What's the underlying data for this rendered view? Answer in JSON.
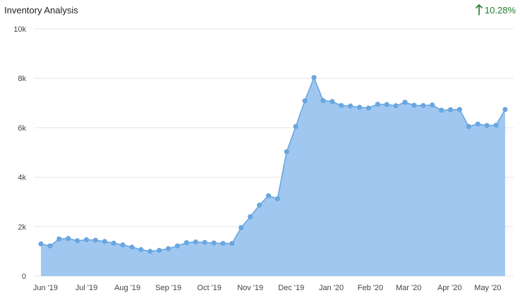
{
  "header": {
    "title": "Inventory Analysis",
    "change_value": "10.28%",
    "change_icon": "arrow-up-icon",
    "change_color": "#1f7a2c"
  },
  "colors": {
    "area_fill": "#9fc7f0",
    "line": "#6aa6e0",
    "marker": "#6aa6e0",
    "grid": "#e6e6e6"
  },
  "chart_data": {
    "type": "area",
    "title": "Inventory Analysis",
    "xlabel": "",
    "ylabel": "",
    "ylim": [
      0,
      10000
    ],
    "y_ticks": [
      {
        "value": 0,
        "label": "0"
      },
      {
        "value": 2000,
        "label": "2k"
      },
      {
        "value": 4000,
        "label": "4k"
      },
      {
        "value": 6000,
        "label": "6k"
      },
      {
        "value": 8000,
        "label": "8k"
      },
      {
        "value": 10000,
        "label": "10k"
      }
    ],
    "x_ticks": [
      {
        "index": 0.5,
        "label": "Jun '19"
      },
      {
        "index": 5,
        "label": "Jul '19"
      },
      {
        "index": 9.5,
        "label": "Aug '19"
      },
      {
        "index": 14,
        "label": "Sep '19"
      },
      {
        "index": 18.5,
        "label": "Oct '19"
      },
      {
        "index": 23,
        "label": "Nov '19"
      },
      {
        "index": 27.5,
        "label": "Dec '19"
      },
      {
        "index": 31.9,
        "label": "Jan '20"
      },
      {
        "index": 36.2,
        "label": "Feb '20"
      },
      {
        "index": 40.4,
        "label": "Mar '20"
      },
      {
        "index": 44.9,
        "label": "Apr '20"
      },
      {
        "index": 49.1,
        "label": "May '20"
      }
    ],
    "grid": true,
    "legend": "none",
    "values": [
      1300,
      1220,
      1500,
      1520,
      1430,
      1470,
      1450,
      1400,
      1330,
      1260,
      1170,
      1070,
      1000,
      1040,
      1110,
      1220,
      1350,
      1380,
      1360,
      1340,
      1320,
      1320,
      1960,
      2400,
      2870,
      3250,
      3130,
      5030,
      6050,
      7090,
      8030,
      7100,
      7060,
      6900,
      6880,
      6830,
      6800,
      6950,
      6940,
      6890,
      7030,
      6910,
      6900,
      6920,
      6710,
      6730,
      6740,
      6050,
      6150,
      6090,
      6100,
      6740
    ]
  }
}
